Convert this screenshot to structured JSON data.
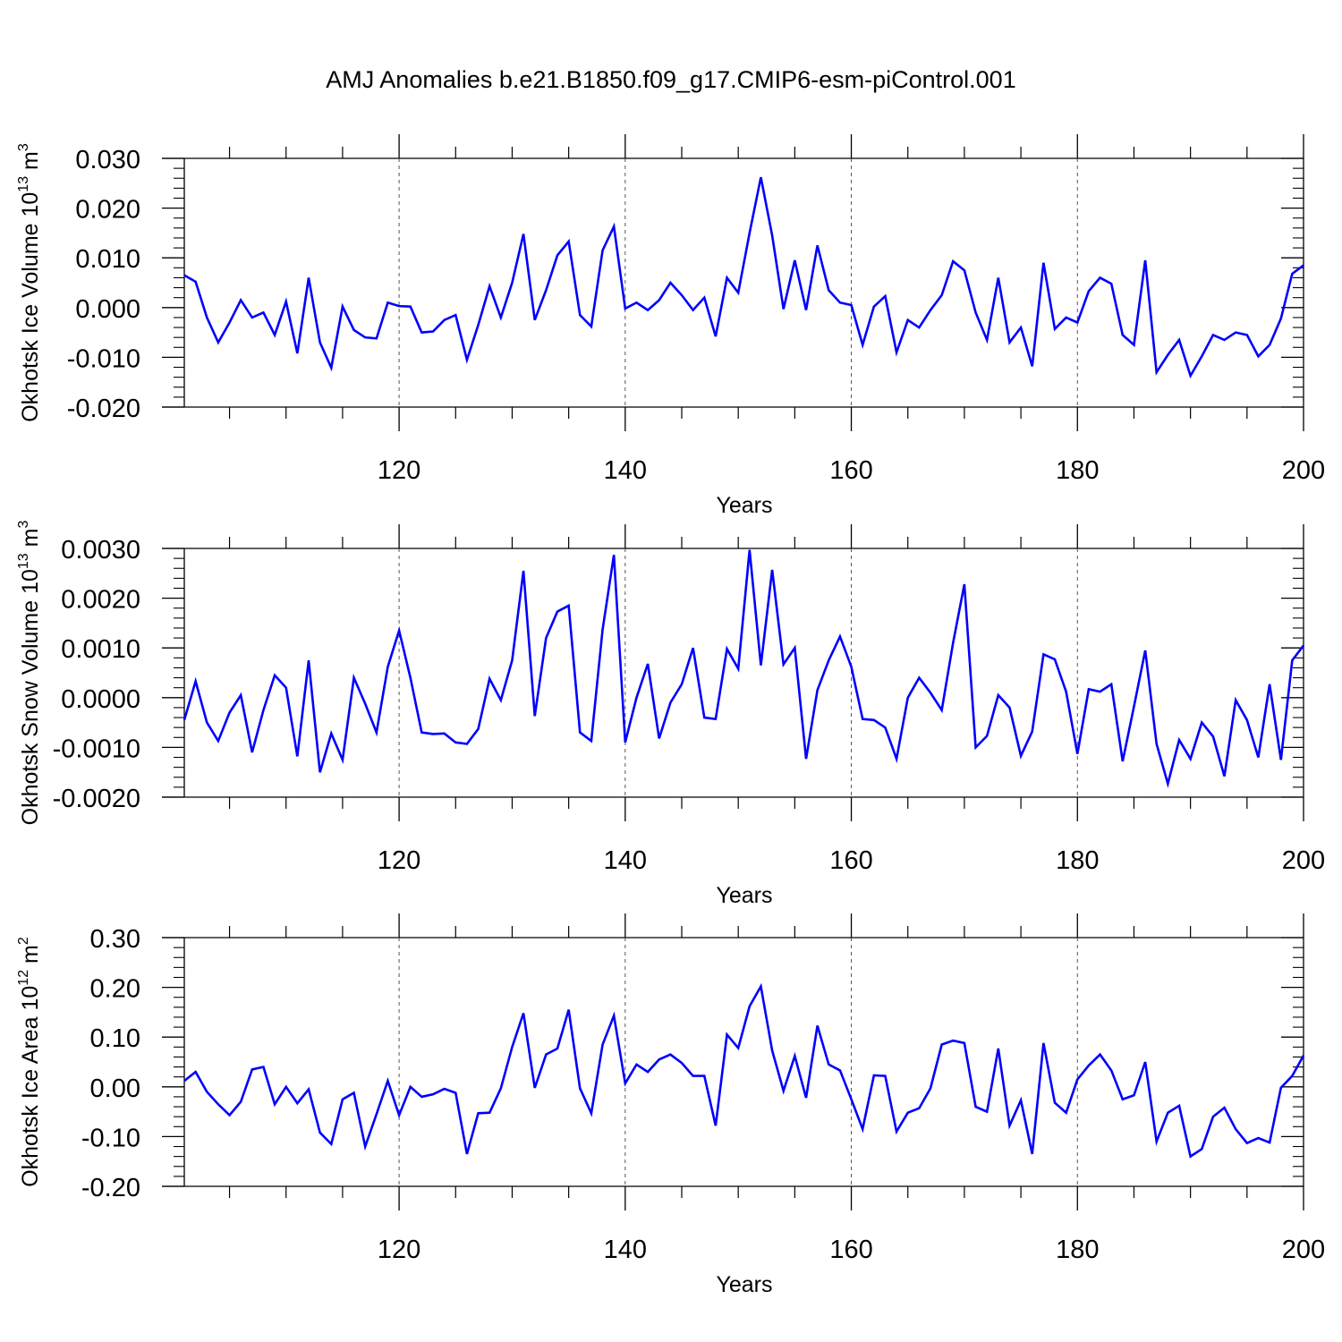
{
  "title": "AMJ Anomalies b.e21.B1850.f09_g17.CMIP6-esm-piControl.001",
  "colors": {
    "line": "#0000ff",
    "axis": "#000000",
    "grid": "#555555",
    "background": "#ffffff"
  },
  "chart_data": [
    {
      "type": "line",
      "title": "",
      "xlabel": "Years",
      "ylabel": {
        "text": "Okhotsk Ice Volume 10",
        "sup": "13",
        "unit": " m",
        "unit_sup": "3"
      },
      "xlim": [
        101,
        200
      ],
      "ylim": [
        -0.02,
        0.03
      ],
      "xticks": [
        120,
        140,
        160,
        180,
        200
      ],
      "xtick_labels": [
        "120",
        "140",
        "160",
        "180",
        "200"
      ],
      "yticks": [
        -0.02,
        -0.01,
        0.0,
        0.01,
        0.02,
        0.03
      ],
      "ytick_labels": [
        "-0.020",
        "-0.010",
        "0.000",
        "0.010",
        "0.020",
        "0.030"
      ],
      "grid": "x dashed at major ticks",
      "series": [
        {
          "x_start": 101,
          "values": [
            0.0065,
            0.0052,
            -0.002,
            -0.007,
            -0.003,
            0.0015,
            -0.002,
            -0.001,
            -0.0055,
            0.0012,
            -0.0092,
            0.006,
            -0.007,
            -0.0121,
            0.0002,
            -0.0045,
            -0.006,
            -0.0062,
            0.001,
            0.0003,
            0.0002,
            -0.005,
            -0.0048,
            -0.0025,
            -0.0015,
            -0.0105,
            -0.0035,
            0.0043,
            -0.002,
            0.005,
            0.0148,
            -0.0025,
            0.0035,
            0.0105,
            0.0133,
            -0.0015,
            -0.0038,
            0.0115,
            0.0163,
            -0.0002,
            0.001,
            -0.0005,
            0.0015,
            0.005,
            0.0025,
            -0.0005,
            0.002,
            -0.0058,
            0.006,
            0.003,
            0.015,
            0.0262,
            0.0145,
            -0.0003,
            0.0095,
            -0.0005,
            0.0125,
            0.0035,
            0.001,
            0.0005,
            -0.0075,
            0.0002,
            0.0023,
            -0.009,
            -0.0025,
            -0.004,
            -0.0005,
            0.0025,
            0.0093,
            0.0075,
            -0.001,
            -0.0065,
            0.006,
            -0.007,
            -0.004,
            -0.0118,
            0.009,
            -0.0043,
            -0.002,
            -0.003,
            0.0033,
            0.006,
            0.0048,
            -0.0055,
            -0.0075,
            0.0095,
            -0.013,
            -0.0095,
            -0.0065,
            -0.0137,
            -0.0098,
            -0.0055,
            -0.0065,
            -0.005,
            -0.0055,
            -0.0098,
            -0.0075,
            -0.0022,
            0.0068,
            0.0085
          ]
        }
      ]
    },
    {
      "type": "line",
      "title": "",
      "xlabel": "Years",
      "ylabel": {
        "text": "Okhotsk Snow Volume 10",
        "sup": "13",
        "unit": " m",
        "unit_sup": "3"
      },
      "xlim": [
        101,
        200
      ],
      "ylim": [
        -0.002,
        0.003
      ],
      "xticks": [
        120,
        140,
        160,
        180,
        200
      ],
      "xtick_labels": [
        "120",
        "140",
        "160",
        "180",
        "200"
      ],
      "yticks": [
        -0.002,
        -0.001,
        0.0,
        0.001,
        0.002,
        0.003
      ],
      "ytick_labels": [
        "-0.0020",
        "-0.0010",
        "0.0000",
        "0.0010",
        "0.0020",
        "0.0030"
      ],
      "grid": "x dashed at major ticks",
      "series": [
        {
          "x_start": 101,
          "values": [
            -0.00045,
            0.00033,
            -0.0005,
            -0.00087,
            -0.0003,
            5e-05,
            -0.0011,
            -0.00025,
            0.00045,
            0.0002,
            -0.00118,
            0.00075,
            -0.0015,
            -0.00072,
            -0.00125,
            0.0004,
            -0.00012,
            -0.0007,
            0.00062,
            0.00135,
            0.0004,
            -0.0007,
            -0.00073,
            -0.00072,
            -0.0009,
            -0.00093,
            -0.00063,
            0.00038,
            -5e-05,
            0.00075,
            0.00255,
            -0.00037,
            0.0012,
            0.00173,
            0.00185,
            -0.0007,
            -0.00087,
            0.00137,
            0.00287,
            -0.0009,
            0.0,
            0.00068,
            -0.00082,
            -0.0001,
            0.00027,
            0.001,
            -0.0004,
            -0.00043,
            0.00098,
            0.00058,
            0.00297,
            0.00065,
            0.00257,
            0.00067,
            0.001,
            -0.00123,
            0.00015,
            0.00075,
            0.00123,
            0.00062,
            -0.00043,
            -0.00045,
            -0.0006,
            -0.00123,
            0.0,
            0.0004,
            0.0001,
            -0.00025,
            0.0011,
            0.00228,
            -0.001,
            -0.00077,
            5e-05,
            -0.0002,
            -0.00117,
            -0.00068,
            0.00087,
            0.00077,
            0.00012,
            -0.00113,
            0.00017,
            0.00012,
            0.00027,
            -0.00128,
            -0.00018,
            0.00095,
            -0.00093,
            -0.00173,
            -0.00085,
            -0.00123,
            -0.0005,
            -0.00078,
            -0.00158,
            -5e-05,
            -0.00045,
            -0.0012,
            0.00027,
            -0.00125,
            0.00075,
            0.00105
          ]
        }
      ]
    },
    {
      "type": "line",
      "title": "",
      "xlabel": "Years",
      "ylabel": {
        "text": "Okhotsk Ice Area 10",
        "sup": "12",
        "unit": " m",
        "unit_sup": "2"
      },
      "xlim": [
        101,
        200
      ],
      "ylim": [
        -0.2,
        0.3
      ],
      "xticks": [
        120,
        140,
        160,
        180,
        200
      ],
      "xtick_labels": [
        "120",
        "140",
        "160",
        "180",
        "200"
      ],
      "yticks": [
        -0.2,
        -0.1,
        0.0,
        0.1,
        0.2,
        0.3
      ],
      "ytick_labels": [
        "-0.20",
        "-0.10",
        "0.00",
        "0.10",
        "0.20",
        "0.30"
      ],
      "grid": "x dashed at major ticks",
      "series": [
        {
          "x_start": 101,
          "values": [
            0.012,
            0.03,
            -0.01,
            -0.035,
            -0.057,
            -0.03,
            0.035,
            0.04,
            -0.035,
            0.0,
            -0.033,
            -0.005,
            -0.092,
            -0.115,
            -0.025,
            -0.012,
            -0.12,
            -0.055,
            0.012,
            -0.057,
            0.0,
            -0.02,
            -0.015,
            -0.004,
            -0.012,
            -0.135,
            -0.053,
            -0.052,
            -0.003,
            0.08,
            0.148,
            -0.002,
            0.065,
            0.077,
            0.155,
            -0.003,
            -0.053,
            0.085,
            0.143,
            0.007,
            0.045,
            0.03,
            0.055,
            0.065,
            0.048,
            0.022,
            0.022,
            -0.078,
            0.105,
            0.078,
            0.162,
            0.202,
            0.073,
            -0.008,
            0.062,
            -0.022,
            0.123,
            0.045,
            0.033,
            -0.025,
            -0.085,
            0.023,
            0.022,
            -0.09,
            -0.052,
            -0.043,
            -0.003,
            0.085,
            0.093,
            0.088,
            -0.04,
            -0.05,
            0.077,
            -0.078,
            -0.027,
            -0.135,
            0.088,
            -0.032,
            -0.052,
            0.015,
            0.043,
            0.065,
            0.033,
            -0.025,
            -0.017,
            0.05,
            -0.11,
            -0.052,
            -0.038,
            -0.14,
            -0.125,
            -0.06,
            -0.042,
            -0.085,
            -0.113,
            -0.103,
            -0.112,
            -0.002,
            0.022,
            0.063
          ]
        }
      ]
    }
  ]
}
